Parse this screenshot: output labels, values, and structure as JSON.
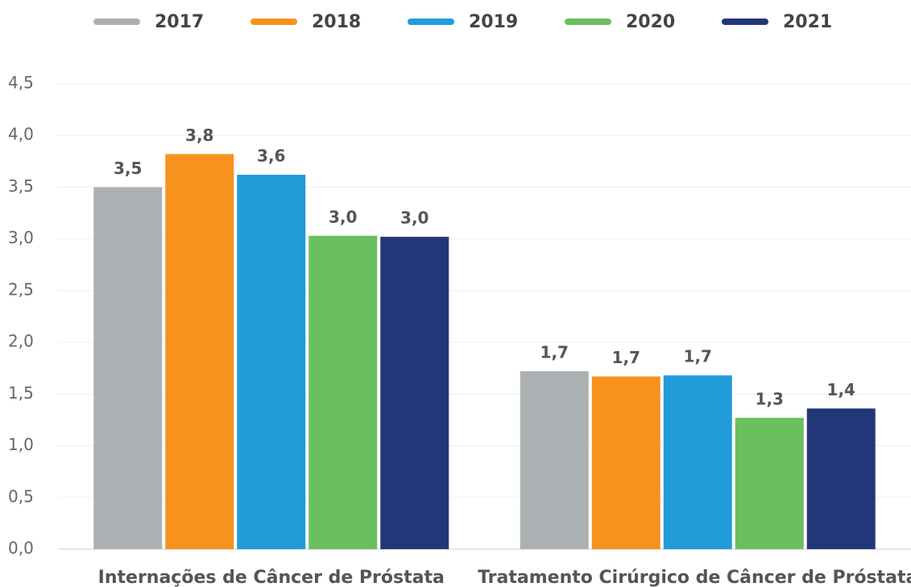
{
  "chart_data": {
    "type": "bar",
    "categories": [
      "Internações de Câncer de Próstata",
      "Tratamento Cirúrgico de Câncer de Próstata"
    ],
    "series": [
      {
        "name": "2017",
        "color": "#abb0b3",
        "values": [
          3.5,
          1.72
        ],
        "value_labels": [
          "3,5",
          "1,7"
        ]
      },
      {
        "name": "2018",
        "color": "#f7921e",
        "values": [
          3.82,
          1.67
        ],
        "value_labels": [
          "3,8",
          "1,7"
        ]
      },
      {
        "name": "2019",
        "color": "#219cd9",
        "values": [
          3.62,
          1.68
        ],
        "value_labels": [
          "3,6",
          "1,7"
        ]
      },
      {
        "name": "2020",
        "color": "#6abf5e",
        "values": [
          3.03,
          1.27
        ],
        "value_labels": [
          "3,0",
          "1,3"
        ]
      },
      {
        "name": "2021",
        "color": "#223778",
        "values": [
          3.02,
          1.36
        ],
        "value_labels": [
          "3,0",
          "1,4"
        ]
      }
    ],
    "ylim": [
      0,
      4.5
    ],
    "yticks": [
      {
        "value": 0,
        "label": "0,0"
      },
      {
        "value": 0.5,
        "label": "0,5"
      },
      {
        "value": 1,
        "label": "1,0"
      },
      {
        "value": 1.5,
        "label": "1,5"
      },
      {
        "value": 2,
        "label": "2,0"
      },
      {
        "value": 2.5,
        "label": "2,5"
      },
      {
        "value": 3,
        "label": "3,0"
      },
      {
        "value": 3.5,
        "label": "3,5"
      },
      {
        "value": 4,
        "label": "4,0"
      },
      {
        "value": 4.5,
        "label": "4,5"
      }
    ],
    "grid": true
  }
}
